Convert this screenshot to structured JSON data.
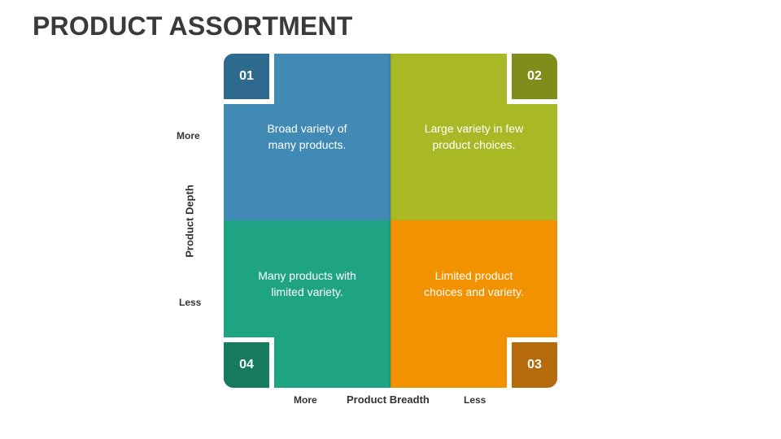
{
  "title": "PRODUCT ASSORTMENT",
  "colors": {
    "blue": "#418ab5",
    "blue_dark": "#2e6a8e",
    "lime": "#a8b925",
    "lime_dark": "#7f8d1b",
    "orange": "#f39200",
    "orange_dark": "#b56a0b",
    "teal": "#1ea383",
    "teal_dark": "#167a5e"
  },
  "quadrants": [
    {
      "number": "01",
      "text_line1": "Broad variety of",
      "text_line2": "many products."
    },
    {
      "number": "02",
      "text_line1": "Large variety in few",
      "text_line2": "product choices."
    },
    {
      "number": "03",
      "text_line1": "Limited product",
      "text_line2": "choices and variety."
    },
    {
      "number": "04",
      "text_line1": "Many products with",
      "text_line2": "limited variety."
    }
  ],
  "axes": {
    "y_title": "Product Depth",
    "y_top": "More",
    "y_bottom": "Less",
    "x_title": "Product Breadth",
    "x_left": "More",
    "x_right": "Less"
  }
}
